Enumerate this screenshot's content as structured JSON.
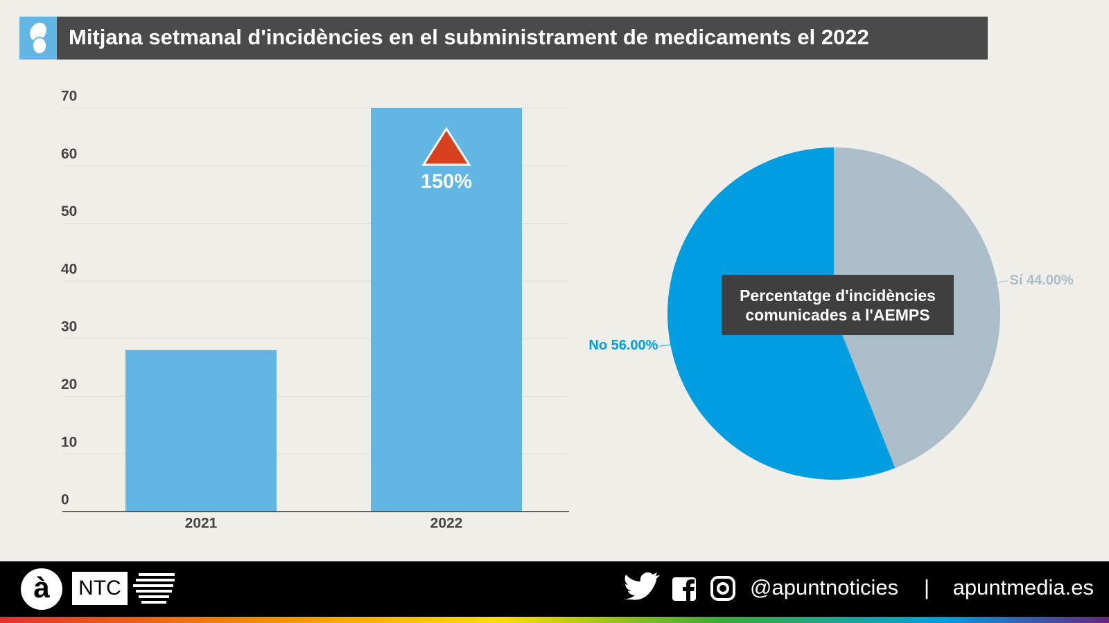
{
  "title": "Mitjana setmanal d'incidències en el subministrament de medicaments el 2022",
  "chart_data": [
    {
      "type": "bar",
      "categories": [
        "2021",
        "2022"
      ],
      "values": [
        28,
        70
      ],
      "color": "#62b6e4",
      "ylim": [
        0,
        70
      ],
      "yticks": [
        0,
        10,
        20,
        30,
        40,
        50,
        60,
        70
      ],
      "grid": true,
      "annotation": "150%",
      "annotation_color": "#d9401e"
    },
    {
      "type": "pie",
      "title": "Percentatge d'incidències comunicades a l'AEMPS",
      "categories": [
        "Sí",
        "No"
      ],
      "values": [
        44,
        56
      ],
      "value_labels": [
        "44.00%",
        "56.00%"
      ],
      "colors": [
        "#aabdc8",
        "#009ee0"
      ]
    }
  ],
  "footer": {
    "logo": "à",
    "brand": "NTC",
    "handle": "@apuntnoticies",
    "separator": "|",
    "site": "apuntmedia.es"
  }
}
